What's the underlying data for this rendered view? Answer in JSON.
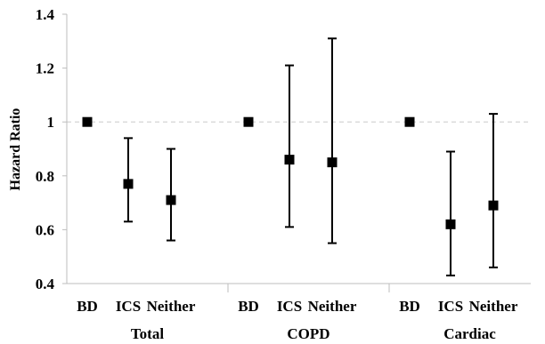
{
  "chart_data": {
    "type": "scatter",
    "title": "",
    "ylabel": "Hazard Ratio",
    "xlabel": "",
    "ylim": [
      0.4,
      1.4
    ],
    "yticks": [
      0.4,
      0.6,
      0.8,
      1,
      1.2,
      1.4
    ],
    "reference_line": 1,
    "groups": [
      {
        "label": "Total",
        "points": [
          {
            "category": "BD",
            "value": 1.0
          },
          {
            "category": "ICS",
            "value": 0.77,
            "lower": 0.63,
            "upper": 0.94
          },
          {
            "category": "Neither",
            "value": 0.71,
            "lower": 0.56,
            "upper": 0.9
          }
        ]
      },
      {
        "label": "COPD",
        "points": [
          {
            "category": "BD",
            "value": 1.0
          },
          {
            "category": "ICS",
            "value": 0.86,
            "lower": 0.61,
            "upper": 1.21
          },
          {
            "category": "Neither",
            "value": 0.85,
            "lower": 0.55,
            "upper": 1.31
          }
        ]
      },
      {
        "label": "Cardiac",
        "points": [
          {
            "category": "BD",
            "value": 1.0
          },
          {
            "category": "ICS",
            "value": 0.62,
            "lower": 0.43,
            "upper": 0.89
          },
          {
            "category": "Neither",
            "value": 0.69,
            "lower": 0.46,
            "upper": 1.03
          }
        ]
      }
    ],
    "grid": false,
    "legend": "none"
  }
}
